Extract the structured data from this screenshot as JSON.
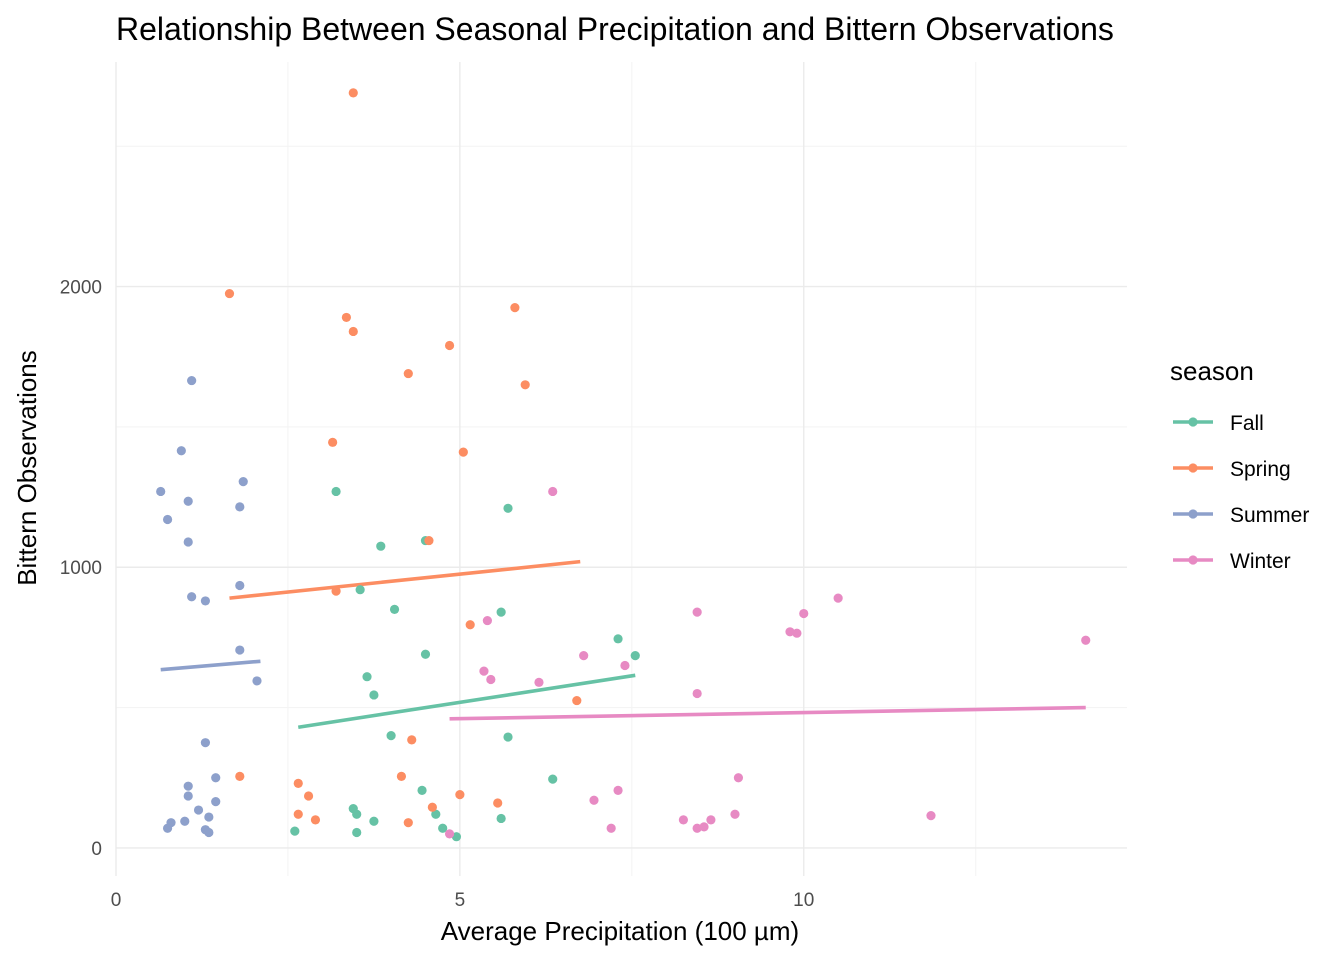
{
  "chart_data": {
    "type": "scatter",
    "title": "Relationship Between Seasonal Precipitation and Bittern Observations",
    "xlabel": "Average Precipitation (100 µm)",
    "ylabel": "Bittern Observations",
    "xlim": [
      0,
      14.7
    ],
    "ylim": [
      -100,
      2800
    ],
    "x_ticks": [
      0,
      5,
      10
    ],
    "x_tick_labels": [
      "0",
      "5",
      "10"
    ],
    "y_ticks": [
      0,
      1000,
      2000
    ],
    "y_tick_labels": [
      "0",
      "1000",
      "2000"
    ],
    "legend": {
      "title": "season",
      "position": "right"
    },
    "series": [
      {
        "name": "Fall",
        "color": "#66c2a5",
        "points": [
          [
            3.2,
            1270
          ],
          [
            5.7,
            1210
          ],
          [
            4.5,
            1095
          ],
          [
            3.85,
            1075
          ],
          [
            3.55,
            920
          ],
          [
            4.05,
            850
          ],
          [
            5.6,
            840
          ],
          [
            7.3,
            745
          ],
          [
            7.55,
            685
          ],
          [
            4.5,
            690
          ],
          [
            3.65,
            610
          ],
          [
            3.75,
            545
          ],
          [
            4.0,
            400
          ],
          [
            5.7,
            395
          ],
          [
            6.35,
            245
          ],
          [
            4.45,
            205
          ],
          [
            3.45,
            140
          ],
          [
            3.5,
            120
          ],
          [
            4.65,
            120
          ],
          [
            3.75,
            95
          ],
          [
            5.6,
            105
          ],
          [
            4.75,
            70
          ],
          [
            2.6,
            60
          ],
          [
            3.5,
            55
          ],
          [
            4.95,
            40
          ]
        ],
        "fit": [
          [
            2.65,
            430
          ],
          [
            7.55,
            615
          ]
        ]
      },
      {
        "name": "Spring",
        "color": "#fc8d62",
        "points": [
          [
            3.45,
            2690
          ],
          [
            1.65,
            1975
          ],
          [
            5.8,
            1925
          ],
          [
            3.35,
            1890
          ],
          [
            3.45,
            1840
          ],
          [
            4.85,
            1790
          ],
          [
            4.25,
            1690
          ],
          [
            5.95,
            1650
          ],
          [
            3.15,
            1445
          ],
          [
            5.05,
            1410
          ],
          [
            4.55,
            1095
          ],
          [
            3.2,
            915
          ],
          [
            5.15,
            795
          ],
          [
            6.7,
            525
          ],
          [
            4.3,
            385
          ],
          [
            1.8,
            255
          ],
          [
            4.15,
            255
          ],
          [
            2.65,
            230
          ],
          [
            2.8,
            185
          ],
          [
            5.0,
            190
          ],
          [
            5.55,
            160
          ],
          [
            4.6,
            145
          ],
          [
            2.65,
            120
          ],
          [
            2.9,
            100
          ],
          [
            4.25,
            90
          ]
        ],
        "fit": [
          [
            1.65,
            890
          ],
          [
            6.75,
            1020
          ]
        ]
      },
      {
        "name": "Summer",
        "color": "#8da0cb",
        "points": [
          [
            1.1,
            1665
          ],
          [
            0.95,
            1415
          ],
          [
            1.85,
            1305
          ],
          [
            0.65,
            1270
          ],
          [
            1.05,
            1235
          ],
          [
            1.8,
            1215
          ],
          [
            0.75,
            1170
          ],
          [
            1.05,
            1090
          ],
          [
            1.8,
            935
          ],
          [
            1.1,
            895
          ],
          [
            1.3,
            880
          ],
          [
            1.8,
            705
          ],
          [
            2.05,
            595
          ],
          [
            1.3,
            375
          ],
          [
            1.45,
            250
          ],
          [
            1.05,
            220
          ],
          [
            1.05,
            185
          ],
          [
            1.45,
            165
          ],
          [
            1.2,
            135
          ],
          [
            1.35,
            110
          ],
          [
            1.0,
            95
          ],
          [
            0.8,
            90
          ],
          [
            0.75,
            70
          ],
          [
            1.3,
            65
          ],
          [
            1.35,
            55
          ]
        ],
        "fit": [
          [
            0.65,
            635
          ],
          [
            2.1,
            665
          ]
        ]
      },
      {
        "name": "Winter",
        "color": "#e78ac3",
        "points": [
          [
            6.35,
            1270
          ],
          [
            10.5,
            890
          ],
          [
            8.45,
            840
          ],
          [
            10.0,
            835
          ],
          [
            9.8,
            770
          ],
          [
            9.9,
            765
          ],
          [
            14.1,
            740
          ],
          [
            5.4,
            810
          ],
          [
            6.8,
            685
          ],
          [
            7.4,
            650
          ],
          [
            5.35,
            630
          ],
          [
            5.45,
            600
          ],
          [
            6.15,
            590
          ],
          [
            8.45,
            550
          ],
          [
            9.05,
            250
          ],
          [
            7.3,
            205
          ],
          [
            6.95,
            170
          ],
          [
            9.0,
            120
          ],
          [
            11.85,
            115
          ],
          [
            8.25,
            100
          ],
          [
            8.65,
            100
          ],
          [
            7.2,
            70
          ],
          [
            8.45,
            70
          ],
          [
            8.55,
            75
          ],
          [
            4.85,
            50
          ]
        ],
        "fit": [
          [
            4.85,
            460
          ],
          [
            14.1,
            500
          ]
        ]
      }
    ]
  }
}
